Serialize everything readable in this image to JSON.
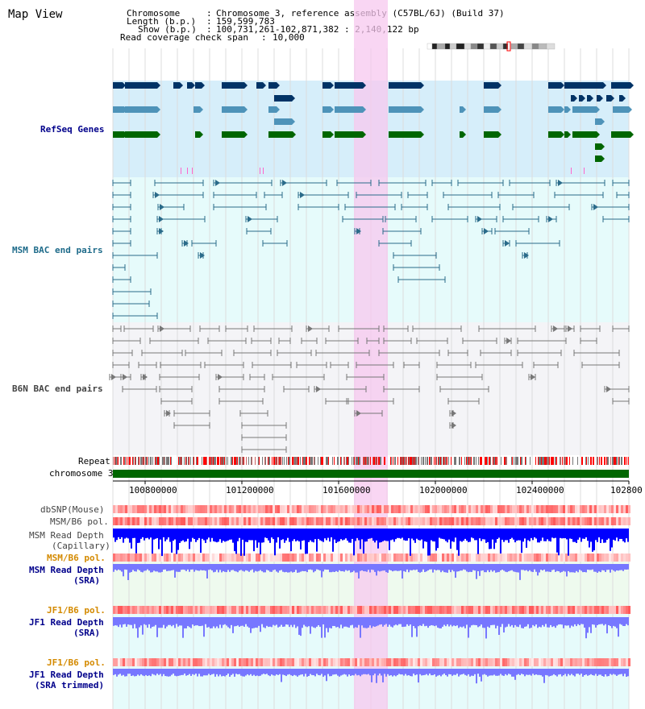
{
  "title": "Map View",
  "info": {
    "chromosome_label": "Chromosome",
    "chromosome_value": "Chromosome 3, reference assembly (C57BL/6J) (Build 37)",
    "length_label": "Length (b.p.)",
    "length_value": "159,599,783",
    "show_label": "Show (b.p.)",
    "show_value": "100,731,261-102,871,382 : 2,140,122 bp",
    "read_cov_label": "Read coverage check span",
    "read_cov_value": "10,000"
  },
  "tracks": {
    "refseq": "RefSeq Genes",
    "msm_bac": "MSM BAC end pairs",
    "b6n_bac": "B6N BAC end pairs",
    "repeat": "Repeat",
    "chromosome": "chromosome 3",
    "dbsnp": "dbSNP(Mouse)",
    "msm_b6_pol_1": "MSM/B6 pol.",
    "msm_read_depth_cap_1": "MSM Read Depth",
    "msm_read_depth_cap_2": "(Capillary)",
    "msm_b6_pol_2": "MSM/B6 pol.",
    "msm_read_depth_sra_1": "MSM Read Depth",
    "msm_read_depth_sra_2": "(SRA)",
    "jf1_b6_pol_1": "JF1/B6 pol.",
    "jf1_read_depth_sra_1": "JF1 Read Depth",
    "jf1_read_depth_sra_2": "(SRA)",
    "jf1_b6_pol_2": "JF1/B6 pol.",
    "jf1_read_depth_trim_1": "JF1 Read Depth",
    "jf1_read_depth_trim_2": "(SRA trimmed)"
  },
  "axis_ticks": [
    "100800000",
    "101200000",
    "101600000",
    "102000000",
    "102400000",
    "102800"
  ],
  "colors": {
    "refseq_bg": "#d6eefa",
    "msm_bac_bg": "#e6fbfb",
    "b6n_bac_bg": "#f4f4f7",
    "highlight": "#f7c8ef",
    "navy": "#003366",
    "steel": "#4e93b9",
    "green": "#006600",
    "bac_msm": "#2a6b8a",
    "bac_b6n": "#777777",
    "depth_dark": "#0000ff",
    "depth_light": "#7777ff",
    "label_blue": "#00008b",
    "label_teal": "#1e6b8a",
    "label_orange": "#d48a00",
    "label_gray": "#444444"
  }
}
